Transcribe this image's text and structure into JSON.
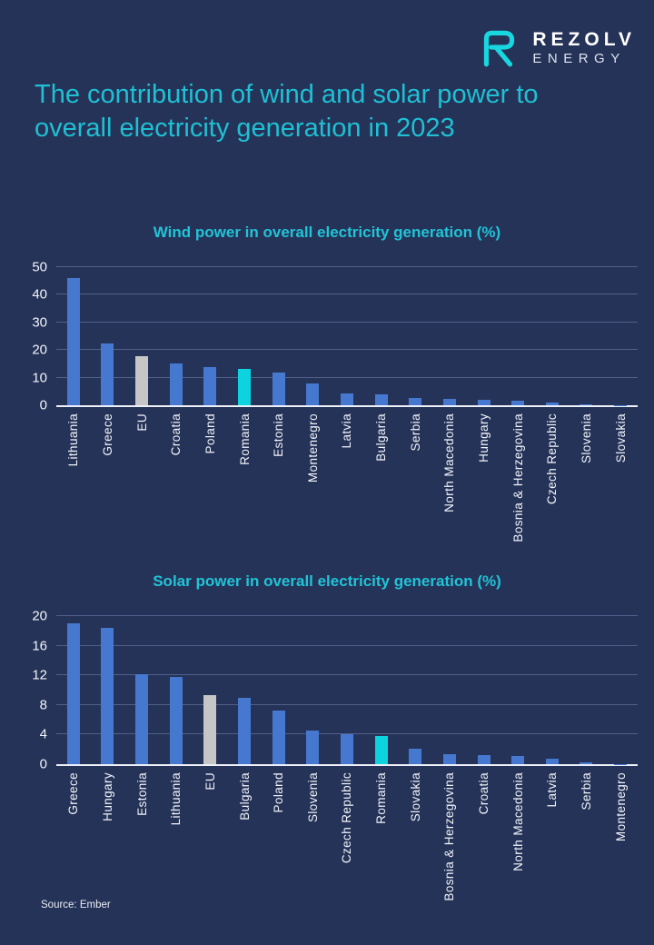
{
  "brand": {
    "primary": "REZOLV",
    "secondary": "ENERGY",
    "mark_color": "#17d7e0"
  },
  "page_title": "The contribution of wind and solar power to overall electricity generation in 2023",
  "source": "Source: Ember",
  "colors": {
    "background": "#253358",
    "title_cyan": "#1fc0d4",
    "chart_title_cyan": "#22c3d6",
    "bar_default": "#4678d0",
    "bar_eu": "#c6c6c6",
    "bar_romania": "#0cd3de",
    "axis_text": "#f2f4fa"
  },
  "chart_data": [
    {
      "type": "bar",
      "title": "Wind power in overall electricity generation (%)",
      "categories": [
        "Lithuania",
        "Greece",
        "EU",
        "Croatia",
        "Poland",
        "Romania",
        "Estonia",
        "Montenegro",
        "Latvia",
        "Bulgaria",
        "Serbia",
        "North Macedonia",
        "Hungary",
        "Bosnia & Herzegovina",
        "Czech Republic",
        "Slovenia",
        "Slovakia"
      ],
      "values": [
        46,
        22.3,
        17.7,
        15.2,
        13.8,
        13.2,
        11.8,
        7.9,
        4.4,
        4.0,
        2.6,
        2.2,
        2.1,
        1.7,
        0.9,
        0.3,
        0.1
      ],
      "ylabel": "",
      "xlabel": "",
      "ylim": [
        0,
        50
      ],
      "yticks": [
        0,
        10,
        20,
        30,
        40,
        50
      ],
      "grid": true,
      "legend": false,
      "highlight_colors": {
        "EU": "#c6c6c6",
        "Romania": "#0cd3de"
      }
    },
    {
      "type": "bar",
      "title": "Solar power in overall electricity generation (%)",
      "categories": [
        "Greece",
        "Hungary",
        "Estonia",
        "Lithuania",
        "EU",
        "Bulgaria",
        "Poland",
        "Slovenia",
        "Czech Republic",
        "Romania",
        "Slovakia",
        "Bosnia & Herzegovina",
        "Croatia",
        "North Macedonia",
        "Latvia",
        "Serbia",
        "Montenegro"
      ],
      "values": [
        19.0,
        18.4,
        12.1,
        11.8,
        9.3,
        8.9,
        7.3,
        4.6,
        4.1,
        3.8,
        2.1,
        1.4,
        1.2,
        1.1,
        0.7,
        0.2,
        0.05
      ],
      "ylabel": "",
      "xlabel": "",
      "ylim": [
        0,
        20
      ],
      "yticks": [
        0,
        4,
        8,
        12,
        16,
        20
      ],
      "grid": true,
      "legend": false,
      "highlight_colors": {
        "EU": "#c6c6c6",
        "Romania": "#0cd3de"
      }
    }
  ]
}
